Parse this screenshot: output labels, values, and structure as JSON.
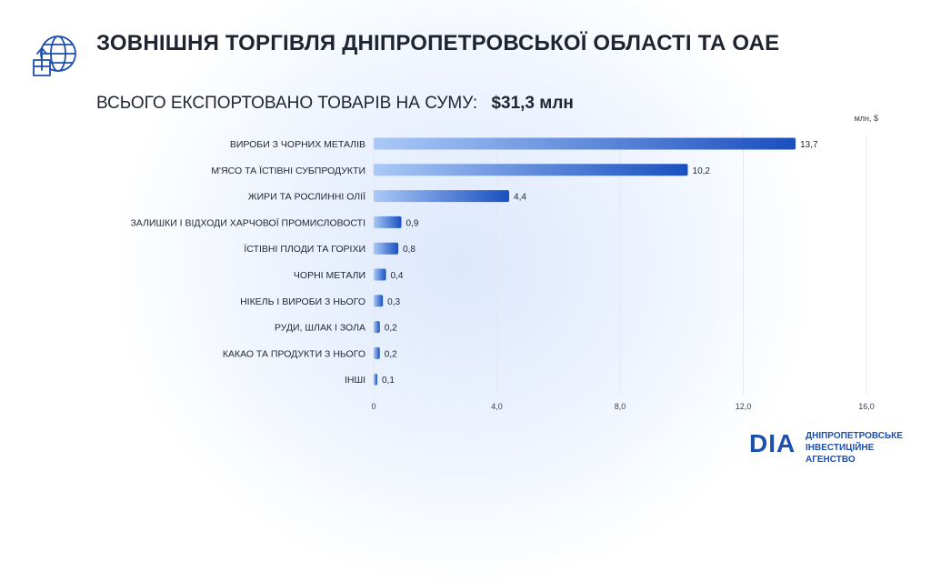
{
  "header": {
    "title": "ЗОВНІШНЯ ТОРГІВЛЯ ДНІПРОПЕТРОВСЬКОЇ ОБЛАСТІ ТА ОАЕ",
    "subtitle_label": "ВСЬОГО ЕКСПОРТОВАНО ТОВАРІВ НА СУМУ:",
    "subtitle_value": "$31,3 млн",
    "icon": "globe-export-icon"
  },
  "logo": {
    "mark": "DIA",
    "line1": "ДНІПРОПЕТРОВСЬКЕ",
    "line2": "ІНВЕСТИЦІЙНЕ АГЕНСТВО"
  },
  "colors": {
    "bar_start": "#aac9f7",
    "bar_end": "#1a4fbf",
    "text": "#1f2430",
    "grid": "#e3e8f0",
    "brand": "#1d4fb0"
  },
  "chart_data": {
    "type": "bar",
    "orientation": "horizontal",
    "unit_label": "млн, $",
    "categories": [
      "ВИРОБИ З ЧОРНИХ МЕТАЛІВ",
      "М'ЯСО ТА ЇСТІВНІ СУБПРОДУКТИ",
      "ЖИРИ ТА РОСЛИННІ ОЛІЇ",
      "ЗАЛИШКИ І ВІДХОДИ ХАРЧОВОЇ ПРОМИСЛОВОСТІ",
      "ЇСТІВНІ ПЛОДИ ТА ГОРІХИ",
      "ЧОРНІ МЕТАЛИ",
      "НІКЕЛЬ І ВИРОБИ З НЬОГО",
      "РУДИ, ШЛАК І ЗОЛА",
      "КАКАО ТА ПРОДУКТИ З НЬОГО",
      "ІНШІ"
    ],
    "values": [
      13.7,
      10.2,
      4.4,
      0.9,
      0.8,
      0.4,
      0.3,
      0.2,
      0.2,
      0.1
    ],
    "value_labels": [
      "13,7",
      "10,2",
      "4,4",
      "0,9",
      "0,8",
      "0,4",
      "0,3",
      "0,2",
      "0,2",
      "0,1"
    ],
    "xlim": [
      0,
      16
    ],
    "xticks": [
      0,
      4,
      8,
      12,
      16
    ],
    "xtick_labels": [
      "0",
      "4,0",
      "8,0",
      "12,0",
      "16,0"
    ],
    "grid": true
  }
}
